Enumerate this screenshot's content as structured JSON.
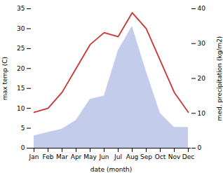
{
  "chart_data": {
    "type": "line",
    "categories": [
      "Jan",
      "Feb",
      "Mar",
      "Apr",
      "May",
      "Jun",
      "Jul",
      "Aug",
      "Sep",
      "Oct",
      "Nov",
      "Dec"
    ],
    "xlabel": "date (month)",
    "ylabel": "max temp (C)",
    "y2label": "med. precipitation (kg/m2)",
    "ylim": [
      0,
      35
    ],
    "yticks": [
      0,
      5,
      10,
      15,
      20,
      25,
      30,
      35
    ],
    "y2lim": [
      0,
      40
    ],
    "y2ticks": [
      0,
      10,
      20,
      30,
      40
    ],
    "grid": false,
    "series": [
      {
        "name": "med. precipitation (kg/m2)",
        "type": "area",
        "axis": "y2",
        "color": "#b8c4e8",
        "values": [
          3.5,
          4.5,
          5.5,
          8,
          14,
          15,
          28,
          35,
          22,
          10,
          6,
          6
        ]
      },
      {
        "name": "max temp (C)",
        "type": "line",
        "color": "#cc3333",
        "values": [
          9,
          10,
          14,
          20,
          26,
          29,
          28,
          34,
          30,
          22,
          14,
          9
        ]
      }
    ]
  }
}
